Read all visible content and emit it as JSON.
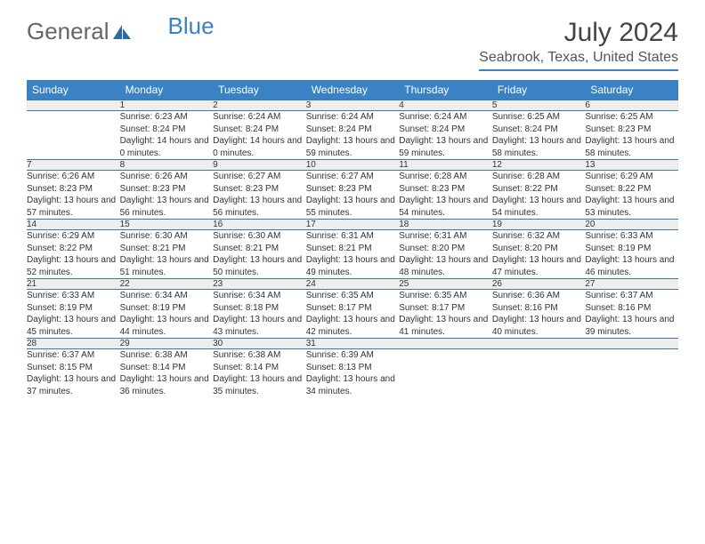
{
  "logo": {
    "text1": "General",
    "text2": "Blue"
  },
  "title": "July 2024",
  "location": "Seabrook, Texas, United States",
  "colors": {
    "header_bg": "#3b82c4",
    "header_text": "#ffffff",
    "daynum_bg": "#eeeeee",
    "border": "#3b7aa5",
    "text": "#333333"
  },
  "day_headers": [
    "Sunday",
    "Monday",
    "Tuesday",
    "Wednesday",
    "Thursday",
    "Friday",
    "Saturday"
  ],
  "weeks": [
    {
      "nums": [
        "",
        "1",
        "2",
        "3",
        "4",
        "5",
        "6"
      ],
      "cells": [
        {
          "empty": true
        },
        {
          "sunrise": "Sunrise: 6:23 AM",
          "sunset": "Sunset: 8:24 PM",
          "daylight": "Daylight: 14 hours and 0 minutes."
        },
        {
          "sunrise": "Sunrise: 6:24 AM",
          "sunset": "Sunset: 8:24 PM",
          "daylight": "Daylight: 14 hours and 0 minutes."
        },
        {
          "sunrise": "Sunrise: 6:24 AM",
          "sunset": "Sunset: 8:24 PM",
          "daylight": "Daylight: 13 hours and 59 minutes."
        },
        {
          "sunrise": "Sunrise: 6:24 AM",
          "sunset": "Sunset: 8:24 PM",
          "daylight": "Daylight: 13 hours and 59 minutes."
        },
        {
          "sunrise": "Sunrise: 6:25 AM",
          "sunset": "Sunset: 8:24 PM",
          "daylight": "Daylight: 13 hours and 58 minutes."
        },
        {
          "sunrise": "Sunrise: 6:25 AM",
          "sunset": "Sunset: 8:23 PM",
          "daylight": "Daylight: 13 hours and 58 minutes."
        }
      ]
    },
    {
      "nums": [
        "7",
        "8",
        "9",
        "10",
        "11",
        "12",
        "13"
      ],
      "cells": [
        {
          "sunrise": "Sunrise: 6:26 AM",
          "sunset": "Sunset: 8:23 PM",
          "daylight": "Daylight: 13 hours and 57 minutes."
        },
        {
          "sunrise": "Sunrise: 6:26 AM",
          "sunset": "Sunset: 8:23 PM",
          "daylight": "Daylight: 13 hours and 56 minutes."
        },
        {
          "sunrise": "Sunrise: 6:27 AM",
          "sunset": "Sunset: 8:23 PM",
          "daylight": "Daylight: 13 hours and 56 minutes."
        },
        {
          "sunrise": "Sunrise: 6:27 AM",
          "sunset": "Sunset: 8:23 PM",
          "daylight": "Daylight: 13 hours and 55 minutes."
        },
        {
          "sunrise": "Sunrise: 6:28 AM",
          "sunset": "Sunset: 8:23 PM",
          "daylight": "Daylight: 13 hours and 54 minutes."
        },
        {
          "sunrise": "Sunrise: 6:28 AM",
          "sunset": "Sunset: 8:22 PM",
          "daylight": "Daylight: 13 hours and 54 minutes."
        },
        {
          "sunrise": "Sunrise: 6:29 AM",
          "sunset": "Sunset: 8:22 PM",
          "daylight": "Daylight: 13 hours and 53 minutes."
        }
      ]
    },
    {
      "nums": [
        "14",
        "15",
        "16",
        "17",
        "18",
        "19",
        "20"
      ],
      "cells": [
        {
          "sunrise": "Sunrise: 6:29 AM",
          "sunset": "Sunset: 8:22 PM",
          "daylight": "Daylight: 13 hours and 52 minutes."
        },
        {
          "sunrise": "Sunrise: 6:30 AM",
          "sunset": "Sunset: 8:21 PM",
          "daylight": "Daylight: 13 hours and 51 minutes."
        },
        {
          "sunrise": "Sunrise: 6:30 AM",
          "sunset": "Sunset: 8:21 PM",
          "daylight": "Daylight: 13 hours and 50 minutes."
        },
        {
          "sunrise": "Sunrise: 6:31 AM",
          "sunset": "Sunset: 8:21 PM",
          "daylight": "Daylight: 13 hours and 49 minutes."
        },
        {
          "sunrise": "Sunrise: 6:31 AM",
          "sunset": "Sunset: 8:20 PM",
          "daylight": "Daylight: 13 hours and 48 minutes."
        },
        {
          "sunrise": "Sunrise: 6:32 AM",
          "sunset": "Sunset: 8:20 PM",
          "daylight": "Daylight: 13 hours and 47 minutes."
        },
        {
          "sunrise": "Sunrise: 6:33 AM",
          "sunset": "Sunset: 8:19 PM",
          "daylight": "Daylight: 13 hours and 46 minutes."
        }
      ]
    },
    {
      "nums": [
        "21",
        "22",
        "23",
        "24",
        "25",
        "26",
        "27"
      ],
      "cells": [
        {
          "sunrise": "Sunrise: 6:33 AM",
          "sunset": "Sunset: 8:19 PM",
          "daylight": "Daylight: 13 hours and 45 minutes."
        },
        {
          "sunrise": "Sunrise: 6:34 AM",
          "sunset": "Sunset: 8:19 PM",
          "daylight": "Daylight: 13 hours and 44 minutes."
        },
        {
          "sunrise": "Sunrise: 6:34 AM",
          "sunset": "Sunset: 8:18 PM",
          "daylight": "Daylight: 13 hours and 43 minutes."
        },
        {
          "sunrise": "Sunrise: 6:35 AM",
          "sunset": "Sunset: 8:17 PM",
          "daylight": "Daylight: 13 hours and 42 minutes."
        },
        {
          "sunrise": "Sunrise: 6:35 AM",
          "sunset": "Sunset: 8:17 PM",
          "daylight": "Daylight: 13 hours and 41 minutes."
        },
        {
          "sunrise": "Sunrise: 6:36 AM",
          "sunset": "Sunset: 8:16 PM",
          "daylight": "Daylight: 13 hours and 40 minutes."
        },
        {
          "sunrise": "Sunrise: 6:37 AM",
          "sunset": "Sunset: 8:16 PM",
          "daylight": "Daylight: 13 hours and 39 minutes."
        }
      ]
    },
    {
      "nums": [
        "28",
        "29",
        "30",
        "31",
        "",
        "",
        ""
      ],
      "cells": [
        {
          "sunrise": "Sunrise: 6:37 AM",
          "sunset": "Sunset: 8:15 PM",
          "daylight": "Daylight: 13 hours and 37 minutes."
        },
        {
          "sunrise": "Sunrise: 6:38 AM",
          "sunset": "Sunset: 8:14 PM",
          "daylight": "Daylight: 13 hours and 36 minutes."
        },
        {
          "sunrise": "Sunrise: 6:38 AM",
          "sunset": "Sunset: 8:14 PM",
          "daylight": "Daylight: 13 hours and 35 minutes."
        },
        {
          "sunrise": "Sunrise: 6:39 AM",
          "sunset": "Sunset: 8:13 PM",
          "daylight": "Daylight: 13 hours and 34 minutes."
        },
        {
          "empty": true
        },
        {
          "empty": true
        },
        {
          "empty": true
        }
      ]
    }
  ]
}
